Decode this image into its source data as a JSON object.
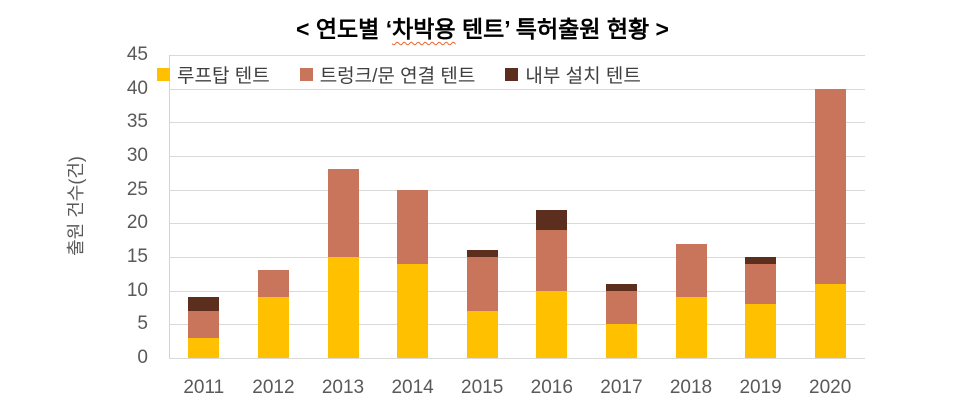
{
  "title": {
    "prefix": "< 연도별 ‘",
    "underlined": "차박용",
    "suffix": " 텐트’ 특허출원 현황 >"
  },
  "chart_data": {
    "type": "bar",
    "stacked": true,
    "title": "< 연도별 ‘차박용 텐트’ 특허출원 현황 >",
    "categories": [
      "2011",
      "2012",
      "2013",
      "2014",
      "2015",
      "2016",
      "2017",
      "2018",
      "2019",
      "2020"
    ],
    "series": [
      {
        "name": "루프탑 텐트",
        "color": "#FFC000",
        "values": [
          3,
          9,
          15,
          14,
          7,
          10,
          5,
          9,
          8,
          11
        ]
      },
      {
        "name": "트렁크/문 연결 텐트",
        "color": "#C8755C",
        "values": [
          4,
          4,
          13,
          11,
          8,
          9,
          5,
          8,
          6,
          29
        ]
      },
      {
        "name": "내부 설치 텐트",
        "color": "#5C2E1E",
        "values": [
          2,
          0,
          0,
          0,
          1,
          3,
          1,
          0,
          1,
          0
        ]
      }
    ],
    "totals": [
      9,
      13,
      28,
      25,
      16,
      22,
      11,
      17,
      15,
      40
    ],
    "xlabel": "",
    "ylabel": "출원 건수(건)",
    "ylim": [
      0,
      45
    ],
    "ytick_step": 5,
    "yticks": [
      0,
      5,
      10,
      15,
      20,
      25,
      30,
      35,
      40,
      45
    ],
    "grid": true,
    "legend_position": "top-left-inside",
    "colors": {
      "grid": "#D9D9D9",
      "axis_line": "#D4D4D4",
      "tick_text": "#595959",
      "legend_text": "#3F3F3F",
      "title_text": "#000000",
      "spellcheck_underline": "#E8632C",
      "background": "#FFFFFF"
    }
  }
}
